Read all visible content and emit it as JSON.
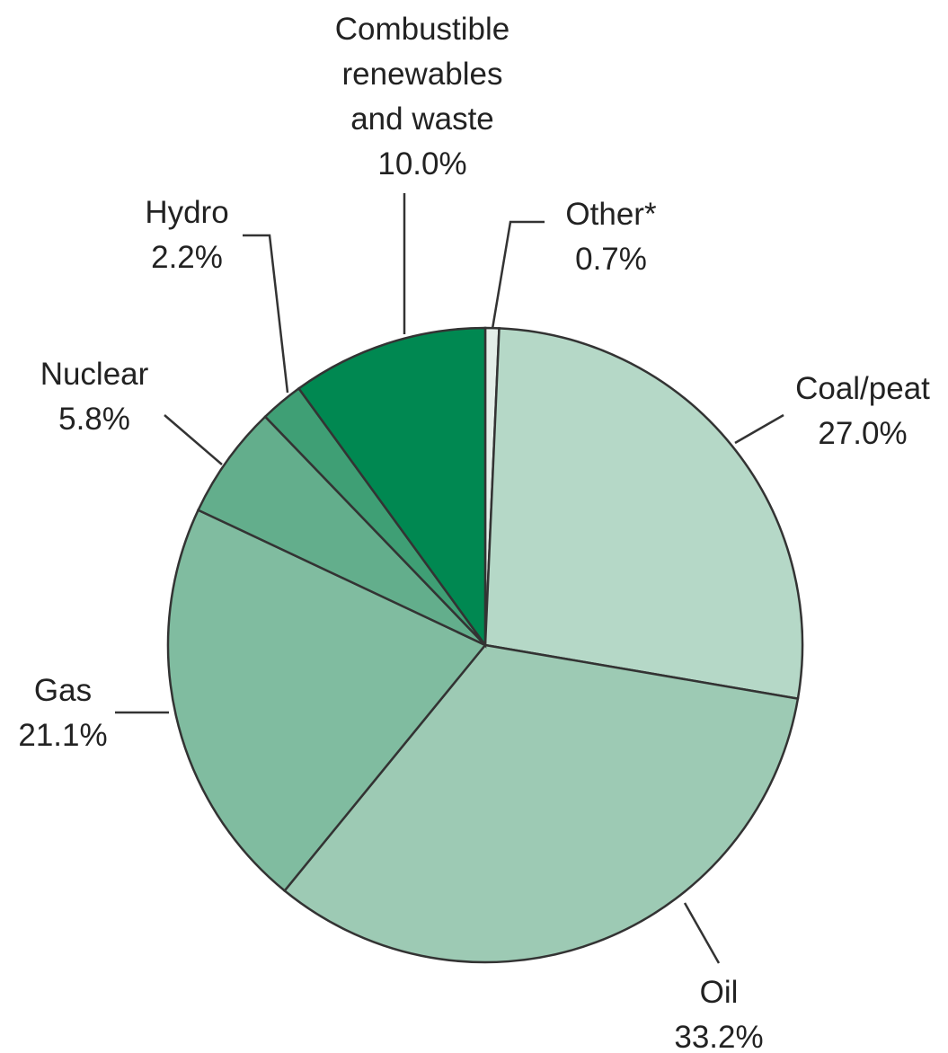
{
  "chart_data": {
    "type": "pie",
    "categories": [
      "Other*",
      "Coal/peat",
      "Oil",
      "Gas",
      "Nuclear",
      "Hydro",
      "Combustible renewables and waste"
    ],
    "values": [
      0.7,
      27.0,
      33.2,
      21.1,
      5.8,
      2.2,
      10.0
    ],
    "value_labels": [
      "0.7%",
      "27.0%",
      "33.2%",
      "21.1%",
      "5.8%",
      "2.2%",
      "10.0%"
    ],
    "colors": [
      "#e3eee8",
      "#b5d8c7",
      "#9dcab4",
      "#80bca0",
      "#63ae8c",
      "#3f9f75",
      "#008851"
    ]
  }
}
